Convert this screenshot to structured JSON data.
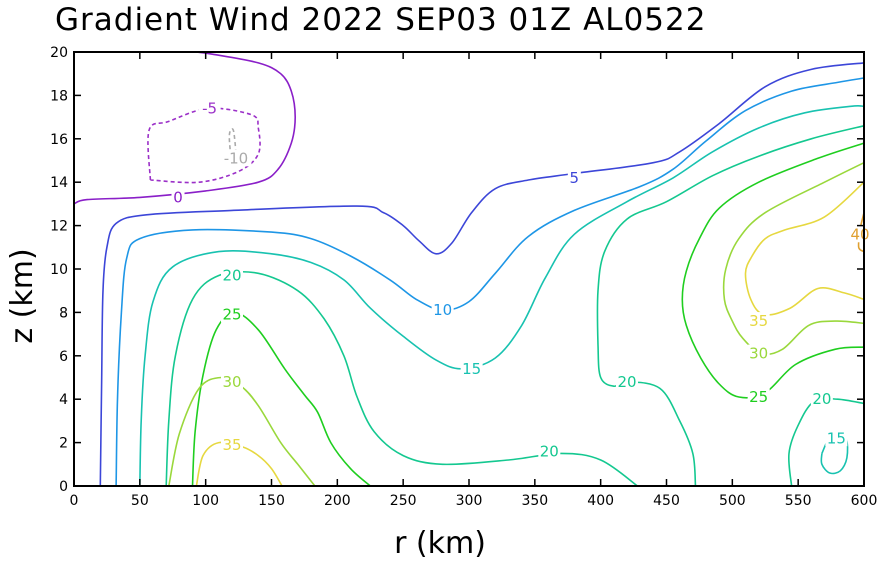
{
  "chart_data": {
    "type": "contour",
    "title": "Gradient Wind 2022 SEP03 01Z  AL0522",
    "xlabel": "r (km)",
    "ylabel": "z (km)",
    "xlim": [
      0,
      600
    ],
    "ylim": [
      0,
      20
    ],
    "xticks": [
      "0",
      "50",
      "100",
      "150",
      "200",
      "250",
      "300",
      "350",
      "400",
      "450",
      "500",
      "550",
      "600"
    ],
    "yticks": [
      "0",
      "2",
      "4",
      "6",
      "8",
      "10",
      "12",
      "14",
      "16",
      "18",
      "20"
    ],
    "levels": [
      {
        "value": -10,
        "color": "#aaaaaa",
        "dashed": true,
        "contours": [
          [
            [
              119,
              15.2
            ],
            [
              118,
              16.2
            ],
            [
              121,
              16.4
            ],
            [
              123,
              15.4
            ]
          ]
        ]
      },
      {
        "value": -5,
        "color": "#9b30c8",
        "dashed": true,
        "contours": [
          [
            [
              58,
              14.1
            ],
            [
              57,
              16.4
            ],
            [
              72,
              16.8
            ],
            [
              102,
              17.4
            ],
            [
              135,
              17.1
            ],
            [
              140,
              16.5
            ],
            [
              140,
              15.3
            ],
            [
              125,
              14.5
            ],
            [
              95,
              14.0
            ],
            [
              58,
              14.1
            ]
          ]
        ]
      },
      {
        "value": 0,
        "color": "#8a1fc8",
        "dashed": false,
        "contours": [
          [
            [
              0,
              13.0
            ],
            [
              10,
              13.2
            ],
            [
              50,
              13.3
            ],
            [
              100,
              13.6
            ],
            [
              140,
              14.0
            ],
            [
              155,
              14.6
            ],
            [
              165,
              15.8
            ],
            [
              168,
              17.0
            ],
            [
              165,
              18.2
            ],
            [
              157,
              19.0
            ],
            [
              140,
              19.5
            ],
            [
              105,
              19.9
            ],
            [
              93,
              20.0
            ]
          ]
        ]
      },
      {
        "value": 5,
        "color": "#3c46d8",
        "dashed": false,
        "contours": [
          [
            [
              20,
              0
            ],
            [
              21,
              5
            ],
            [
              22,
              9
            ],
            [
              25,
              11
            ],
            [
              32,
              12.1
            ],
            [
              55,
              12.5
            ],
            [
              120,
              12.7
            ],
            [
              215,
              12.9
            ],
            [
              235,
              12.6
            ],
            [
              250,
              12.0
            ],
            [
              262,
              11.3
            ],
            [
              275,
              10.7
            ],
            [
              287,
              11.2
            ],
            [
              302,
              12.6
            ],
            [
              320,
              13.7
            ],
            [
              345,
              14.1
            ],
            [
              380,
              14.4
            ],
            [
              440,
              14.9
            ],
            [
              460,
              15.4
            ],
            [
              490,
              16.7
            ],
            [
              525,
              18.4
            ],
            [
              560,
              19.2
            ],
            [
              600,
              19.5
            ]
          ]
        ]
      },
      {
        "value": 10,
        "color": "#1e96e6",
        "dashed": false,
        "contours": [
          [
            [
              32,
              0
            ],
            [
              33,
              4
            ],
            [
              36,
              8
            ],
            [
              40,
              10.5
            ],
            [
              50,
              11.4
            ],
            [
              90,
              11.8
            ],
            [
              150,
              11.7
            ],
            [
              180,
              11.4
            ],
            [
              210,
              10.6
            ],
            [
              240,
              9.5
            ],
            [
              260,
              8.6
            ],
            [
              280,
              8.1
            ],
            [
              300,
              8.5
            ],
            [
              320,
              9.8
            ],
            [
              345,
              11.5
            ],
            [
              380,
              12.7
            ],
            [
              430,
              13.8
            ],
            [
              455,
              14.6
            ],
            [
              480,
              15.9
            ],
            [
              510,
              17.3
            ],
            [
              545,
              18.2
            ],
            [
              580,
              18.6
            ],
            [
              600,
              18.8
            ]
          ]
        ]
      },
      {
        "value": 15,
        "color": "#18c2b0",
        "dashed": false,
        "contours": [
          [
            [
              50,
              0
            ],
            [
              51,
              3
            ],
            [
              54,
              6
            ],
            [
              60,
              8.5
            ],
            [
              75,
              10.1
            ],
            [
              110,
              10.8
            ],
            [
              150,
              10.7
            ],
            [
              180,
              10.3
            ],
            [
              205,
              9.5
            ],
            [
              225,
              8.2
            ],
            [
              250,
              6.9
            ],
            [
              275,
              5.8
            ],
            [
              295,
              5.4
            ],
            [
              320,
              5.9
            ],
            [
              340,
              7.4
            ],
            [
              358,
              9.6
            ],
            [
              380,
              11.6
            ],
            [
              420,
              13.1
            ],
            [
              455,
              14.2
            ],
            [
              485,
              15.4
            ],
            [
              520,
              16.5
            ],
            [
              555,
              17.2
            ],
            [
              590,
              17.5
            ],
            [
              600,
              17.5
            ]
          ],
          [
            [
              568,
              1.5
            ],
            [
              568,
              1.0
            ],
            [
              574,
              0.6
            ],
            [
              582,
              0.7
            ],
            [
              587,
              1.3
            ],
            [
              586,
              2.2
            ],
            [
              575,
              2.3
            ],
            [
              568,
              1.5
            ]
          ]
        ]
      },
      {
        "value": 20,
        "color": "#14c890",
        "dashed": false,
        "contours": [
          [
            [
              70,
              0
            ],
            [
              72,
              3
            ],
            [
              77,
              6
            ],
            [
              90,
              8.6
            ],
            [
              110,
              9.7
            ],
            [
              140,
              9.8
            ],
            [
              170,
              9.0
            ],
            [
              190,
              7.7
            ],
            [
              205,
              6.0
            ],
            [
              215,
              4.1
            ],
            [
              228,
              2.5
            ],
            [
              250,
              1.4
            ],
            [
              280,
              1.0
            ],
            [
              330,
              1.2
            ],
            [
              370,
              1.5
            ],
            [
              400,
              1.2
            ],
            [
              428,
              0
            ]
          ],
          [
            [
              472,
              0
            ],
            [
              470,
              1.5
            ],
            [
              460,
              3.0
            ],
            [
              445,
              4.5
            ],
            [
              420,
              4.8
            ],
            [
              410,
              4.6
            ],
            [
              400,
              5.0
            ],
            [
              398,
              6.5
            ],
            [
              398,
              9.0
            ],
            [
              403,
              10.8
            ],
            [
              420,
              12.3
            ],
            [
              450,
              13.1
            ],
            [
              485,
              14.3
            ],
            [
              520,
              15.2
            ],
            [
              560,
              16.0
            ],
            [
              600,
              16.6
            ]
          ],
          [
            [
              545,
              0
            ],
            [
              543,
              1.5
            ],
            [
              550,
              2.8
            ],
            [
              562,
              3.9
            ],
            [
              580,
              4.0
            ],
            [
              600,
              3.8
            ]
          ]
        ]
      },
      {
        "value": 25,
        "color": "#1fce1f",
        "dashed": false,
        "contours": [
          [
            [
              90,
              0
            ],
            [
              92,
              2.5
            ],
            [
              98,
              5.1
            ],
            [
              108,
              7.2
            ],
            [
              122,
              8.0
            ],
            [
              140,
              7.2
            ],
            [
              160,
              5.4
            ],
            [
              175,
              4.2
            ],
            [
              185,
              3.4
            ],
            [
              195,
              2.0
            ],
            [
              210,
              0.8
            ],
            [
              225,
              0
            ]
          ],
          [
            [
              600,
              15.8
            ],
            [
              565,
              15.1
            ],
            [
              520,
              14.0
            ],
            [
              490,
              12.8
            ],
            [
              475,
              11.4
            ],
            [
              465,
              9.9
            ],
            [
              462,
              8.6
            ],
            [
              465,
              7.4
            ],
            [
              476,
              5.9
            ],
            [
              490,
              4.7
            ],
            [
              505,
              4.1
            ],
            [
              525,
              4.3
            ],
            [
              548,
              5.6
            ],
            [
              578,
              6.3
            ],
            [
              600,
              6.4
            ]
          ]
        ]
      },
      {
        "value": 30,
        "color": "#9ad83c",
        "dashed": false,
        "contours": [
          [
            [
              72,
              0
            ],
            [
              80,
              2.4
            ],
            [
              95,
              4.5
            ],
            [
              112,
              5.0
            ],
            [
              127,
              4.6
            ],
            [
              140,
              3.7
            ],
            [
              157,
              2.0
            ],
            [
              170,
              1.0
            ],
            [
              183,
              0
            ]
          ],
          [
            [
              600,
              14.9
            ],
            [
              570,
              14.0
            ],
            [
              525,
              12.6
            ],
            [
              505,
              11.4
            ],
            [
              495,
              10.0
            ],
            [
              494,
              8.6
            ],
            [
              500,
              7.6
            ],
            [
              508,
              6.8
            ],
            [
              522,
              6.1
            ],
            [
              538,
              6.3
            ],
            [
              558,
              7.4
            ],
            [
              578,
              7.6
            ],
            [
              600,
              7.5
            ]
          ]
        ]
      },
      {
        "value": 35,
        "color": "#e6d840",
        "dashed": false,
        "contours": [
          [
            [
              93,
              0
            ],
            [
              98,
              1.4
            ],
            [
              110,
              2.0
            ],
            [
              128,
              1.8
            ],
            [
              140,
              1.4
            ],
            [
              150,
              0.8
            ],
            [
              158,
              0
            ]
          ],
          [
            [
              600,
              14.0
            ],
            [
              570,
              12.4
            ],
            [
              540,
              11.8
            ],
            [
              525,
              11.4
            ],
            [
              515,
              10.6
            ],
            [
              510,
              9.8
            ],
            [
              514,
              8.6
            ],
            [
              524,
              7.9
            ],
            [
              544,
              8.2
            ],
            [
              565,
              9.1
            ],
            [
              585,
              8.9
            ],
            [
              600,
              8.6
            ]
          ]
        ]
      },
      {
        "value": 40,
        "color": "#e0a030",
        "dashed": false,
        "contours": [
          [
            [
              600,
              12.6
            ],
            [
              597,
              11.8
            ],
            [
              596,
              11.0
            ],
            [
              600,
              10.8
            ]
          ]
        ]
      }
    ],
    "contour_labels": [
      {
        "text": "-5",
        "x": 103,
        "y": 17.4,
        "color": "#9b30c8"
      },
      {
        "text": "-10",
        "x": 123,
        "y": 15.1,
        "color": "#aaaaaa"
      },
      {
        "text": "0",
        "x": 79,
        "y": 13.3,
        "color": "#8a1fc8"
      },
      {
        "text": "5",
        "x": 380,
        "y": 14.2,
        "color": "#3c46d8"
      },
      {
        "text": "10",
        "x": 280,
        "y": 8.1,
        "color": "#1e96e6"
      },
      {
        "text": "15",
        "x": 302,
        "y": 5.4,
        "color": "#18c2b0"
      },
      {
        "text": "15",
        "x": 579,
        "y": 2.2,
        "color": "#18c2b0"
      },
      {
        "text": "20",
        "x": 120,
        "y": 9.7,
        "color": "#14c890"
      },
      {
        "text": "20",
        "x": 361,
        "y": 1.6,
        "color": "#14c890"
      },
      {
        "text": "20",
        "x": 420,
        "y": 4.8,
        "color": "#14c890"
      },
      {
        "text": "20",
        "x": 568,
        "y": 4.0,
        "color": "#14c890"
      },
      {
        "text": "25",
        "x": 120,
        "y": 7.9,
        "color": "#1fce1f"
      },
      {
        "text": "25",
        "x": 520,
        "y": 4.1,
        "color": "#1fce1f"
      },
      {
        "text": "30",
        "x": 120,
        "y": 4.8,
        "color": "#9ad83c"
      },
      {
        "text": "30",
        "x": 520,
        "y": 6.1,
        "color": "#9ad83c"
      },
      {
        "text": "35",
        "x": 120,
        "y": 1.9,
        "color": "#e6d840"
      },
      {
        "text": "35",
        "x": 520,
        "y": 7.6,
        "color": "#e6d840"
      },
      {
        "text": "40",
        "x": 597,
        "y": 11.6,
        "color": "#e0a030"
      }
    ]
  }
}
